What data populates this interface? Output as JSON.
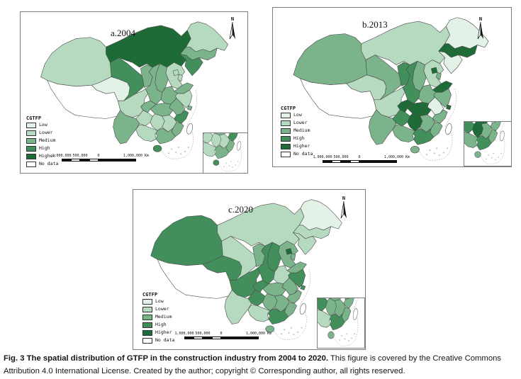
{
  "figure_caption": {
    "bold": "Fig. 3 The spatial distribution of GTFP in the construction industry from 2004 to 2020.",
    "regular": "This figure is covered by the Creative Commons Attribution 4.0 International License. Created by the author; copyright © Corresponding author, all rights reserved."
  },
  "north_arrow_label": "N",
  "legend": {
    "title": "CGTFP",
    "classes": [
      {
        "label": "Low",
        "color": "#e2f2e6"
      },
      {
        "label": "Lower",
        "color": "#b6dabf"
      },
      {
        "label": "Medium",
        "color": "#7bb38b"
      },
      {
        "label": "High",
        "color": "#428f5b"
      },
      {
        "label": "Higher",
        "color": "#1f6b38"
      },
      {
        "label": "No data",
        "color": "#ffffff"
      }
    ]
  },
  "scale_bar": {
    "labels": [
      "1,000,000",
      "500,000",
      "0",
      "1,000,000 Km"
    ]
  },
  "panels": [
    {
      "id": "a",
      "title": "a.2004",
      "provinces": {
        "Xinjiang": "Lower",
        "Tibet": "No data",
        "Qinghai": "Low",
        "Gansu": "High",
        "Ningxia": "Medium",
        "InnerMongolia": "Higher",
        "Heilongjiang": "Lower",
        "Jilin": "Medium",
        "Liaoning": "High",
        "Hebei": "Lower",
        "Beijing": "Lower",
        "Tianjin": "Lower",
        "Shanxi": "Medium",
        "Shandong": "Medium",
        "Shaanxi": "Medium",
        "Henan": "Medium",
        "Jiangsu": "Lower",
        "Anhui": "Medium",
        "Shanghai": "Medium",
        "Hubei": "Medium",
        "Chongqing": "Medium",
        "Sichuan": "Lower",
        "Guizhou": "Lower",
        "Yunnan": "Medium",
        "Hunan": "Lower",
        "Jiangxi": "Lower",
        "Zhejiang": "High",
        "Fujian": "Medium",
        "Guangdong": "Medium",
        "Guangxi": "Lower",
        "Hainan": "High",
        "Taiwan": "No data"
      }
    },
    {
      "id": "b",
      "title": "b.2013",
      "provinces": {
        "Xinjiang": "Medium",
        "Tibet": "No data",
        "Qinghai": "Lower",
        "Gansu": "Medium",
        "Ningxia": "High",
        "InnerMongolia": "Lower",
        "Heilongjiang": "Low",
        "Jilin": "Higher",
        "Liaoning": "Low",
        "Hebei": "Lower",
        "Beijing": "Higher",
        "Tianjin": "Medium",
        "Shanxi": "Medium",
        "Shandong": "Higher",
        "Shaanxi": "High",
        "Henan": "Medium",
        "Jiangsu": "Medium",
        "Anhui": "Low",
        "Shanghai": "Higher",
        "Hubei": "Higher",
        "Chongqing": "Higher",
        "Sichuan": "Lower",
        "Guizhou": "High",
        "Yunnan": "Medium",
        "Hunan": "Higher",
        "Jiangxi": "Medium",
        "Zhejiang": "Medium",
        "Fujian": "Medium",
        "Guangdong": "High",
        "Guangxi": "Medium",
        "Hainan": "Medium",
        "Taiwan": "No data"
      }
    },
    {
      "id": "c",
      "title": "c.2020",
      "provinces": {
        "Xinjiang": "High",
        "Tibet": "No data",
        "Qinghai": "High",
        "Gansu": "Lower",
        "Ningxia": "Medium",
        "InnerMongolia": "Lower",
        "Heilongjiang": "Low",
        "Jilin": "Lower",
        "Liaoning": "Lower",
        "Hebei": "Medium",
        "Beijing": "Higher",
        "Tianjin": "Medium",
        "Shanxi": "High",
        "Shandong": "Medium",
        "Shaanxi": "High",
        "Henan": "Lower",
        "Jiangsu": "High",
        "Anhui": "Medium",
        "Shanghai": "High",
        "Hubei": "Medium",
        "Chongqing": "High",
        "Sichuan": "High",
        "Guizhou": "High",
        "Yunnan": "Lower",
        "Hunan": "Medium",
        "Jiangxi": "Medium",
        "Zhejiang": "Medium",
        "Fujian": "Medium",
        "Guangdong": "High",
        "Guangxi": "Lower",
        "Hainan": "Medium",
        "Taiwan": "No data"
      }
    }
  ]
}
